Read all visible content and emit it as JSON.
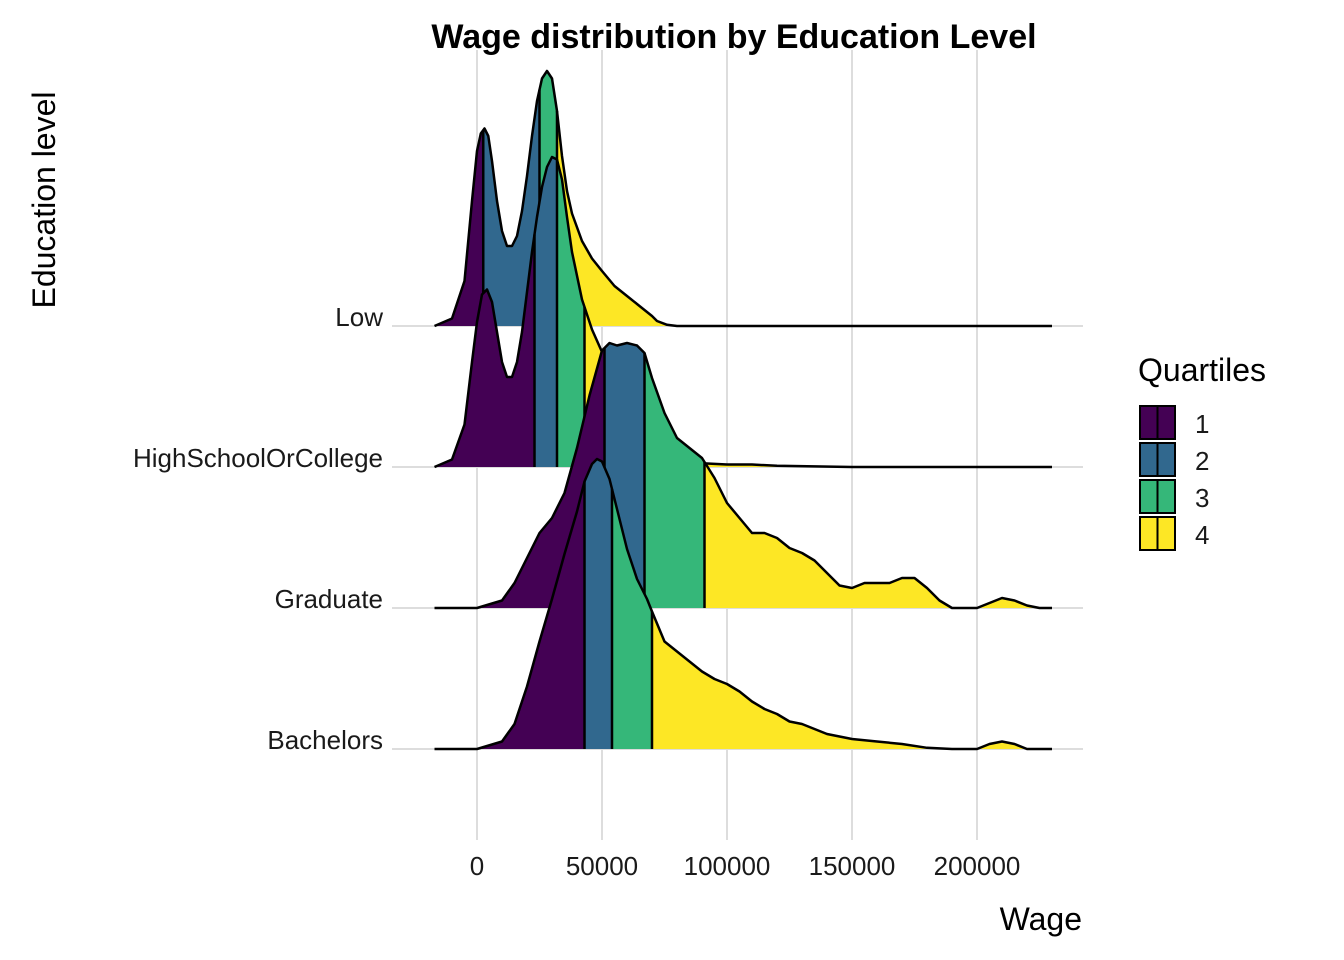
{
  "chart_data": {
    "type": "ridgeline",
    "title": "Wage distribution by Education Level",
    "xlabel": "Wage",
    "ylabel": "Education level",
    "xlim": [
      -20000,
      230000
    ],
    "x_ticks": [
      0,
      50000,
      100000,
      150000,
      200000
    ],
    "x_tick_labels": [
      "0",
      "50000",
      "100000",
      "150000",
      "200000"
    ],
    "grid": "vertical major",
    "legend": {
      "title": "Quartiles",
      "position": "right",
      "entries": [
        {
          "label": "1",
          "color": "#440154"
        },
        {
          "label": "2",
          "color": "#31688E"
        },
        {
          "label": "3",
          "color": "#35B779"
        },
        {
          "label": "4",
          "color": "#FDE725"
        }
      ]
    },
    "series": [
      {
        "name": "Low",
        "quartiles": [
          2500,
          25000,
          32000
        ],
        "density_x": [
          -17000,
          -10000,
          -5000,
          -2000,
          0,
          1500,
          3000,
          4500,
          6000,
          8000,
          10000,
          12000,
          14000,
          16000,
          18000,
          20000,
          22000,
          24000,
          26000,
          28000,
          30000,
          32000,
          34000,
          36000,
          38000,
          42000,
          46000,
          50000,
          55000,
          60000,
          65000,
          70000,
          72000,
          76000,
          80000,
          100000,
          150000,
          200000,
          230000
        ],
        "density_y": [
          0.0,
          0.03,
          0.18,
          0.5,
          0.7,
          0.77,
          0.79,
          0.76,
          0.66,
          0.5,
          0.38,
          0.32,
          0.32,
          0.36,
          0.46,
          0.6,
          0.76,
          0.9,
          0.99,
          1.02,
          0.99,
          0.86,
          0.68,
          0.54,
          0.45,
          0.34,
          0.27,
          0.22,
          0.16,
          0.12,
          0.08,
          0.04,
          0.02,
          0.005,
          0.0,
          0.0,
          0.0,
          0.0,
          0.0
        ]
      },
      {
        "name": "HighSchoolOrCollege",
        "quartiles": [
          23000,
          32000,
          43000
        ],
        "density_x": [
          -17000,
          -10000,
          -5000,
          -2000,
          0,
          2000,
          4000,
          6000,
          8000,
          10000,
          12000,
          14000,
          16000,
          18000,
          20000,
          22000,
          24000,
          26000,
          28000,
          30000,
          32000,
          34000,
          36000,
          38000,
          42000,
          46000,
          50000,
          55000,
          60000,
          65000,
          70000,
          75000,
          80000,
          90000,
          100000,
          110000,
          120000,
          150000,
          200000,
          230000
        ],
        "density_y": [
          0.0,
          0.03,
          0.17,
          0.42,
          0.58,
          0.69,
          0.71,
          0.66,
          0.54,
          0.42,
          0.36,
          0.36,
          0.42,
          0.54,
          0.7,
          0.86,
          1.0,
          1.12,
          1.2,
          1.24,
          1.23,
          1.15,
          1.0,
          0.86,
          0.67,
          0.55,
          0.46,
          0.37,
          0.29,
          0.21,
          0.14,
          0.08,
          0.04,
          0.015,
          0.01,
          0.01,
          0.005,
          0.0,
          0.0,
          0.0
        ]
      },
      {
        "name": "Graduate",
        "quartiles": [
          51000,
          67000,
          91000
        ],
        "density_x": [
          -17000,
          0,
          10000,
          15000,
          20000,
          25000,
          30000,
          35000,
          40000,
          45000,
          50000,
          53000,
          56000,
          60000,
          64000,
          67000,
          70000,
          75000,
          80000,
          85000,
          90000,
          95000,
          100000,
          105000,
          110000,
          115000,
          120000,
          125000,
          130000,
          135000,
          140000,
          145000,
          150000,
          155000,
          160000,
          165000,
          170000,
          175000,
          180000,
          185000,
          190000,
          200000,
          205000,
          210000,
          215000,
          220000,
          225000,
          230000
        ],
        "density_y": [
          0.0,
          0.0,
          0.03,
          0.1,
          0.2,
          0.3,
          0.36,
          0.46,
          0.64,
          0.85,
          1.03,
          1.06,
          1.05,
          1.06,
          1.05,
          1.02,
          0.92,
          0.78,
          0.68,
          0.64,
          0.6,
          0.52,
          0.42,
          0.36,
          0.3,
          0.3,
          0.28,
          0.24,
          0.22,
          0.19,
          0.14,
          0.09,
          0.08,
          0.1,
          0.1,
          0.1,
          0.12,
          0.12,
          0.08,
          0.03,
          0.0,
          0.0,
          0.02,
          0.04,
          0.03,
          0.01,
          0.0,
          0.0
        ]
      },
      {
        "name": "Bachelors",
        "quartiles": [
          43000,
          54000,
          70000
        ],
        "density_x": [
          -17000,
          0,
          10000,
          15000,
          20000,
          25000,
          30000,
          35000,
          40000,
          43000,
          46000,
          48000,
          50000,
          53000,
          56000,
          60000,
          64000,
          68000,
          70000,
          75000,
          80000,
          85000,
          90000,
          95000,
          100000,
          105000,
          110000,
          115000,
          120000,
          125000,
          130000,
          135000,
          140000,
          145000,
          150000,
          160000,
          170000,
          180000,
          190000,
          200000,
          205000,
          210000,
          215000,
          220000,
          230000
        ],
        "density_y": [
          0.0,
          0.0,
          0.03,
          0.1,
          0.25,
          0.43,
          0.6,
          0.78,
          0.95,
          1.07,
          1.14,
          1.16,
          1.15,
          1.08,
          0.96,
          0.8,
          0.68,
          0.6,
          0.55,
          0.43,
          0.39,
          0.35,
          0.31,
          0.28,
          0.26,
          0.23,
          0.19,
          0.16,
          0.14,
          0.11,
          0.1,
          0.08,
          0.06,
          0.05,
          0.04,
          0.03,
          0.02,
          0.005,
          0.0,
          0.0,
          0.02,
          0.03,
          0.02,
          0.0,
          0.0
        ]
      }
    ]
  }
}
